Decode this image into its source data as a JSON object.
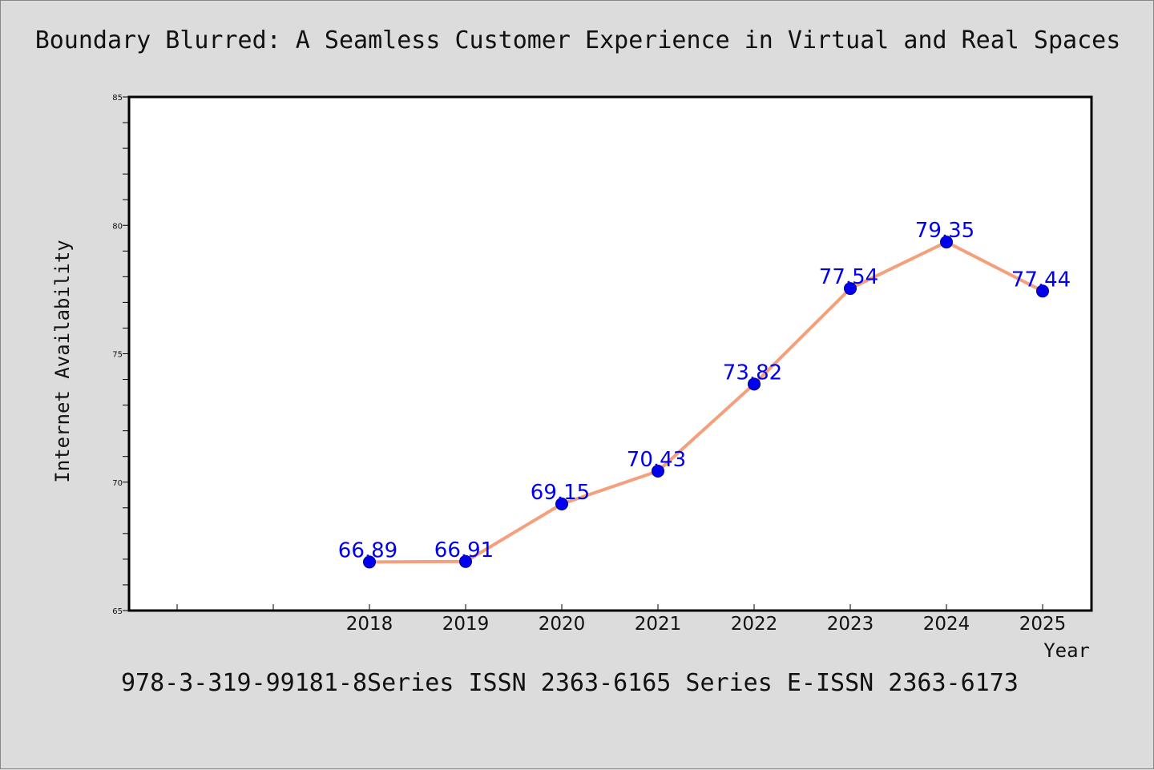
{
  "title": "Boundary Blurred: A Seamless Customer Experience in Virtual and Real Spaces",
  "footer": "978-3-319-99181-8Series ISSN 2363-6165 Series E-ISSN 2363-6173",
  "chart_data": {
    "type": "line",
    "title": "Boundary Blurred: A Seamless Customer Experience in Virtual and Real Spaces",
    "xlabel": "Year",
    "ylabel": "Internet Availability",
    "categories": [
      "2018",
      "2019",
      "2020",
      "2021",
      "2022",
      "2023",
      "2024",
      "2025"
    ],
    "series": [
      {
        "values": [
          66.89,
          66.91,
          69.15,
          70.43,
          73.82,
          77.54,
          79.35,
          77.44
        ]
      }
    ],
    "data_labels": [
      "66.89",
      "66.91",
      "69.15",
      "70.43",
      "73.82",
      "77.54",
      "79.35",
      "77.44"
    ],
    "ylim": [
      65,
      85
    ],
    "y_ticks": [
      "65",
      "70",
      "75",
      "80",
      "85"
    ],
    "grid": false,
    "line_color": "#f4a07c",
    "marker_color": "#0000ee",
    "label_color": "#0000ee"
  }
}
